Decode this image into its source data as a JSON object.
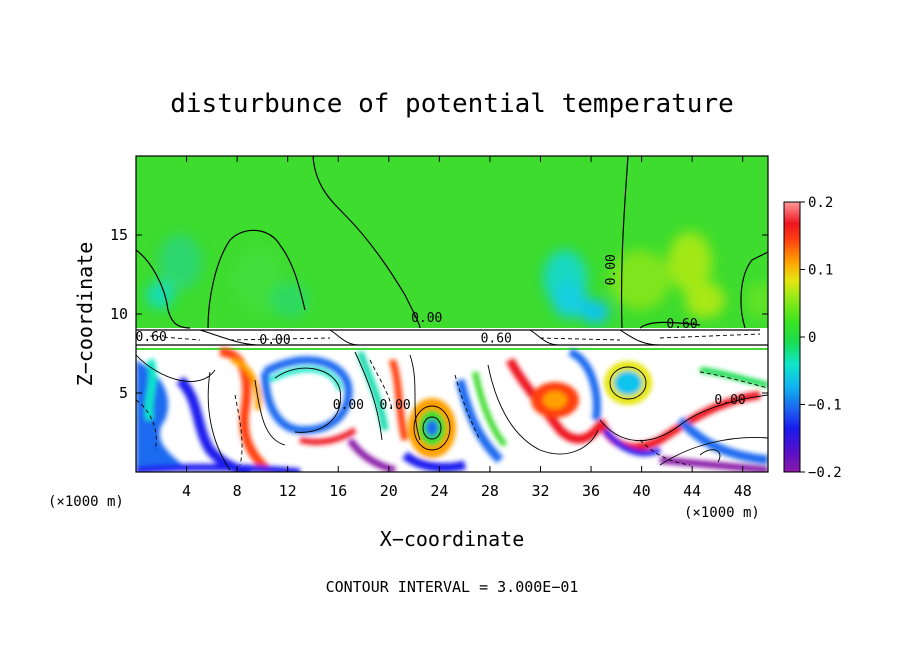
{
  "chart_data": {
    "type": "heatmap",
    "title": "disturbunce of potential temperature",
    "xlabel": "X−coordinate",
    "ylabel": "Z−coordinate",
    "x_unit": "(×1000 m)",
    "x_unit_right": "(×1000 m)",
    "footer": "CONTOUR INTERVAL = 3.000E−01",
    "x_range": [
      0,
      50
    ],
    "y_range": [
      0,
      20
    ],
    "x_ticks": [
      4,
      8,
      12,
      16,
      20,
      24,
      28,
      32,
      36,
      40,
      44,
      48
    ],
    "x_tick_labels": [
      "4",
      "8",
      "12",
      "16",
      "20",
      "24",
      "28",
      "32",
      "36",
      "40",
      "44",
      "48"
    ],
    "y_ticks": [
      5,
      10,
      15
    ],
    "y_tick_labels": [
      "5",
      "10",
      "15"
    ],
    "colorbar": {
      "range": [
        -0.2,
        0.2
      ],
      "ticks": [
        0.2,
        0.1,
        0,
        -0.1,
        -0.2
      ],
      "tick_labels": [
        "0.2",
        "0.1",
        "0",
        "−0.1",
        "−0.2"
      ]
    },
    "contour_labels": [
      {
        "text": "0.00",
        "x": 37.9,
        "z": 12.8
      },
      {
        "text": "0.00",
        "x": 23.0,
        "z": 9.5
      },
      {
        "text": "0.60",
        "x": 43.2,
        "z": 9.1
      },
      {
        "text": "0.60",
        "x": 28.5,
        "z": 8.2
      },
      {
        "text": "0.00",
        "x": 11.0,
        "z": 8.1
      },
      {
        "text": "0.60",
        "x": 1.2,
        "z": 8.3
      },
      {
        "text": "0.00",
        "x": 16.8,
        "z": 4.0
      },
      {
        "text": "0.00",
        "x": 20.5,
        "z": 4.0
      },
      {
        "text": "0.00",
        "x": 47.0,
        "z": 4.3
      }
    ]
  }
}
